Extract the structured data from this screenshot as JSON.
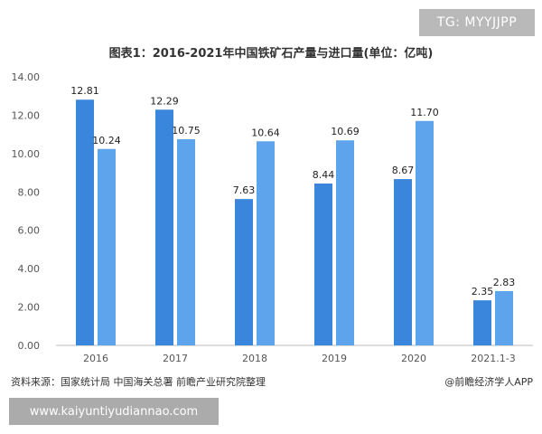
{
  "watermark_tag": "TG: MYYJJPP",
  "bottom_banner": "www.kaiyuntiyudiannao.com",
  "footer": {
    "source": "资料来源：国家统计局 中国海关总署 前瞻产业研究院整理",
    "credit": "@前瞻经济学人APP"
  },
  "colors": {
    "series_dark": "#3b86dd",
    "series_light": "#5ea4ec",
    "axis_text": "#555555",
    "axis_line": "#bbbbbb"
  },
  "chart_data": {
    "type": "bar",
    "title": "图表1：2016-2021年中国铁矿石产量与进口量(单位：亿吨)",
    "xlabel": "",
    "ylabel": "",
    "ylim": [
      0,
      14
    ],
    "y_ticks": [
      "0.00",
      "2.00",
      "4.00",
      "6.00",
      "8.00",
      "10.00",
      "12.00",
      "14.00"
    ],
    "categories": [
      "2016",
      "2017",
      "2018",
      "2019",
      "2020",
      "2021.1-3"
    ],
    "series": [
      {
        "values": [
          12.81,
          12.29,
          7.63,
          8.44,
          8.67,
          2.35
        ],
        "labels": [
          "12.81",
          "12.29",
          "7.63",
          "8.44",
          "8.67",
          "2.35"
        ]
      },
      {
        "values": [
          10.24,
          10.75,
          10.64,
          10.69,
          11.7,
          2.83
        ],
        "labels": [
          "10.24",
          "10.75",
          "10.64",
          "10.69",
          "11.70",
          "2.83"
        ]
      }
    ],
    "grid": false,
    "legend": "none"
  }
}
